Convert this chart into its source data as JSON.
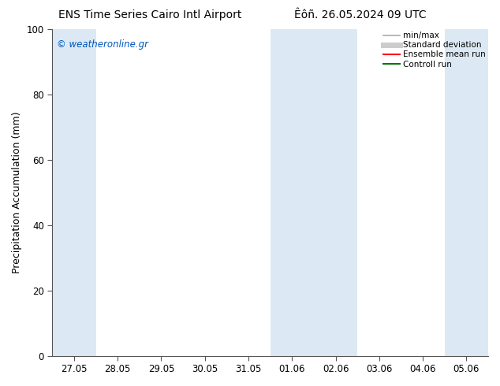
{
  "title_left": "ENS Time Series Cairo Intl Airport",
  "title_right": "Êôñ. 26.05.2024 09 UTC",
  "ylabel": "Precipitation Accumulation (mm)",
  "ylim": [
    0,
    100
  ],
  "yticks": [
    0,
    20,
    40,
    60,
    80,
    100
  ],
  "xtick_labels": [
    "27.05",
    "28.05",
    "29.05",
    "30.05",
    "31.05",
    "01.06",
    "02.06",
    "03.06",
    "04.06",
    "05.06"
  ],
  "xtick_positions": [
    0,
    1,
    2,
    3,
    4,
    5,
    6,
    7,
    8,
    9
  ],
  "xlim": [
    -0.5,
    9.5
  ],
  "shaded_bands": [
    {
      "xmin": -0.5,
      "xmax": 0.5,
      "color": "#dce9f5"
    },
    {
      "xmin": 4.5,
      "xmax": 6.5,
      "color": "#dce9f5"
    },
    {
      "xmin": 8.5,
      "xmax": 9.5,
      "color": "#dce9f5"
    }
  ],
  "watermark_text": "© weatheronline.gr",
  "watermark_color": "#0055bb",
  "legend_items": [
    {
      "label": "min/max",
      "color": "#aaaaaa",
      "lw": 1.2
    },
    {
      "label": "Standard deviation",
      "color": "#cccccc",
      "lw": 5
    },
    {
      "label": "Ensemble mean run",
      "color": "#ff0000",
      "lw": 1.5
    },
    {
      "label": "Controll run",
      "color": "#007700",
      "lw": 1.5
    }
  ],
  "bg_color": "#ffffff",
  "plot_bg_color": "#ffffff",
  "tick_label_fontsize": 8.5,
  "axis_label_fontsize": 9,
  "title_fontsize": 10
}
